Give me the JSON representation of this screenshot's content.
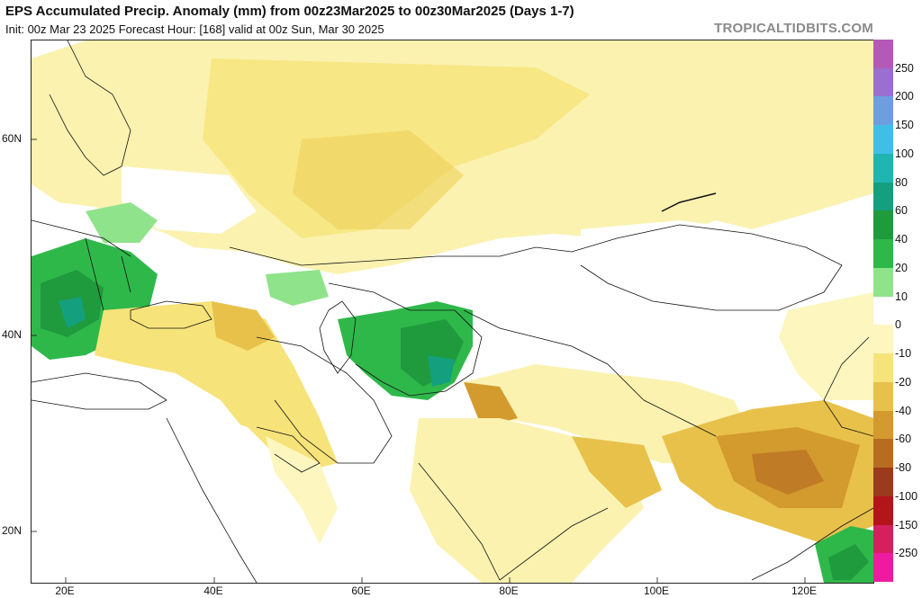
{
  "header": {
    "title": "EPS Accumulated Precip. Anomaly (mm) from 00z23Mar2025 to 00z30Mar2025 (Days 1-7)",
    "subtitle": "Init: 00z Mar 23 2025   Forecast Hour: [168]   valid at 00z Sun, Mar 30 2025",
    "brand": "TROPICALTIDBITS.COM"
  },
  "axes": {
    "lat_labels": [
      "60N",
      "40N",
      "20N"
    ],
    "lon_labels": [
      "20E",
      "40E",
      "60E",
      "80E",
      "100E",
      "120E"
    ]
  },
  "legend": {
    "items": [
      {
        "label": "250",
        "color": "#b35ab8"
      },
      {
        "label": "200",
        "color": "#9a6fd0"
      },
      {
        "label": "150",
        "color": "#6f9ee0"
      },
      {
        "label": "100",
        "color": "#3fbfe8"
      },
      {
        "label": "80",
        "color": "#1fb5b0"
      },
      {
        "label": "60",
        "color": "#14a07e"
      },
      {
        "label": "40",
        "color": "#1f9a3d"
      },
      {
        "label": "20",
        "color": "#2fb84a"
      },
      {
        "label": "10",
        "color": "#8fe38a"
      },
      {
        "label": "0",
        "color": "#ffffff"
      },
      {
        "label": "-10",
        "color": "#fdf6bf"
      },
      {
        "label": "-20",
        "color": "#f6e37a"
      },
      {
        "label": "-40",
        "color": "#e8c14a"
      },
      {
        "label": "-60",
        "color": "#d39a2e"
      },
      {
        "label": "-80",
        "color": "#b66d22"
      },
      {
        "label": "-100",
        "color": "#9b3a1c"
      },
      {
        "label": "-150",
        "color": "#b3151b"
      },
      {
        "label": "-250",
        "color": "#d6205d"
      },
      {
        "label": "",
        "color": "#f01aa0"
      }
    ]
  }
}
